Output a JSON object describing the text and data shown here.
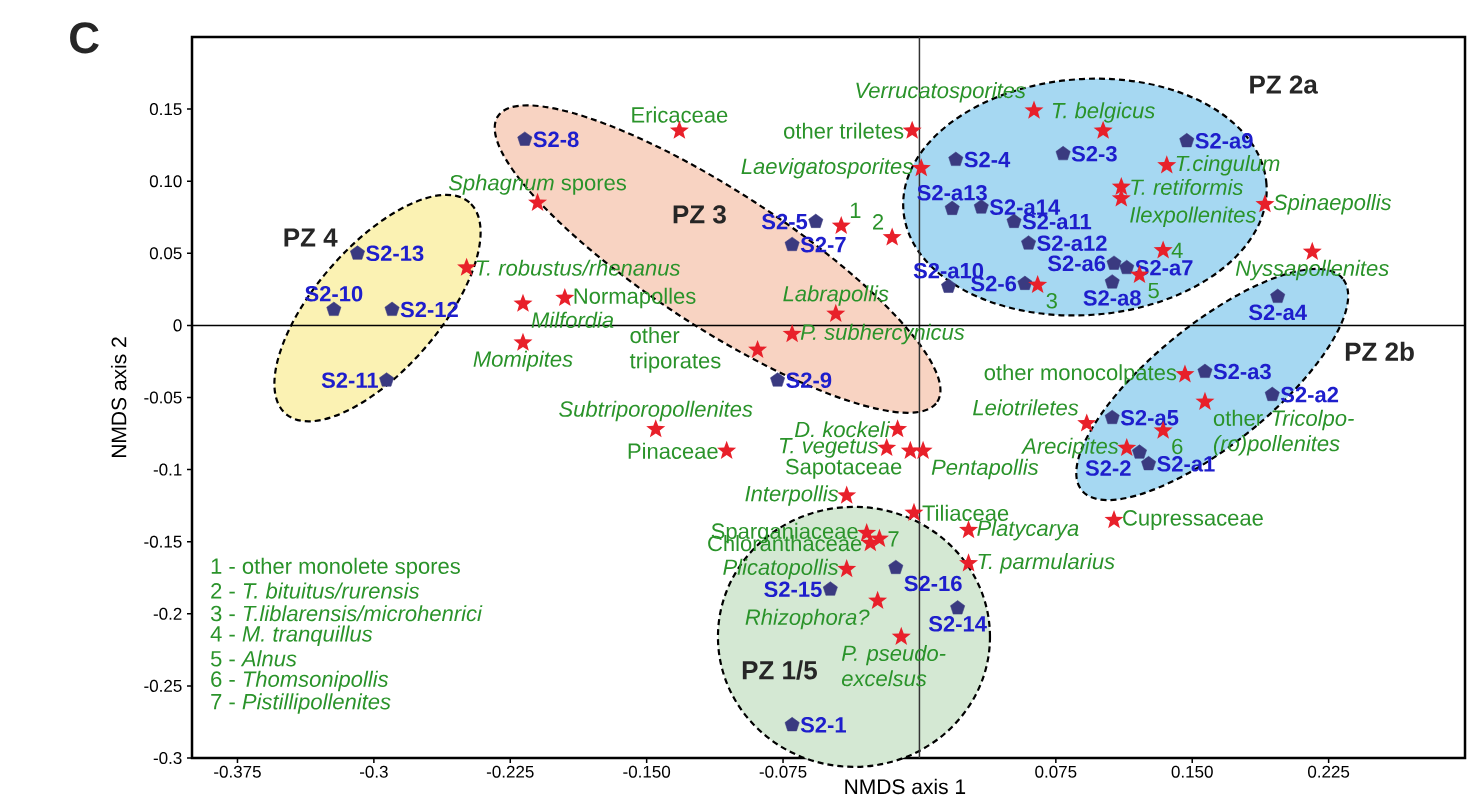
{
  "chart_data": {
    "type": "scatter",
    "title": "C",
    "xlabel": "NMDS axis 1",
    "ylabel": "NMDS axis 2",
    "xlim": [
      -0.4,
      0.3
    ],
    "ylim": [
      -0.3,
      0.2
    ],
    "xticks": [
      -0.375,
      -0.3,
      -0.225,
      {
        "value": -0.15,
        "label": "-0.150"
      },
      -0.075,
      0.075,
      {
        "value": 0.15,
        "label": "0.150"
      },
      0.225
    ],
    "yticks": [
      -0.3,
      -0.25,
      -0.2,
      -0.15,
      -0.1,
      -0.05,
      0,
      0.05,
      {
        "value": 0.1,
        "label": "0.10"
      },
      0.15
    ],
    "ref_lines": [
      {
        "axis": "x",
        "value": 0,
        "color": "#333333"
      },
      {
        "axis": "y",
        "value": 0,
        "color": "#000000"
      }
    ],
    "series": [
      {
        "color": "#3a3a80",
        "x": [
          -0.309,
          -0.322,
          -0.29,
          -0.293,
          -0.217,
          -0.057,
          -0.07,
          -0.078,
          0.02,
          0.079,
          0.147,
          0.018,
          0.034,
          0.052,
          0.06,
          0.107,
          0.114,
          0.106,
          0.016,
          0.058,
          0.197,
          0.157,
          0.194,
          0.106,
          0.121,
          0.126,
          -0.049,
          -0.013,
          0.021,
          -0.07
        ],
        "values": [
          0.05,
          0.011,
          0.011,
          -0.038,
          0.129,
          0.072,
          0.056,
          -0.038,
          0.115,
          0.119,
          0.128,
          0.081,
          0.082,
          0.072,
          0.057,
          0.043,
          0.04,
          0.03,
          0.027,
          0.029,
          0.02,
          -0.032,
          -0.048,
          -0.064,
          -0.088,
          -0.096,
          -0.183,
          -0.168,
          -0.196,
          -0.277
        ]
      },
      {
        "color": "#e8202a",
        "marker": "star",
        "x": [
          -0.249,
          -0.132,
          -0.21,
          -0.218,
          -0.195,
          -0.218,
          -0.043,
          -0.015,
          -0.004,
          0.001,
          0.063,
          0.101,
          -0.046,
          -0.07,
          -0.089,
          0.136,
          0.111,
          0.111,
          0.19,
          0.216,
          0.134,
          0.121,
          0.065,
          0.146,
          -0.145,
          -0.106,
          -0.012,
          -0.018,
          -0.005,
          0.002,
          0.092,
          0.114,
          0.134,
          0.157,
          -0.04,
          -0.003,
          -0.029,
          -0.027,
          -0.022,
          -0.04,
          0.027,
          0.027,
          0.107,
          -0.023,
          -0.01
        ],
        "values": [
          0.04,
          0.135,
          0.085,
          0.015,
          0.019,
          -0.012,
          0.069,
          0.061,
          0.135,
          0.109,
          0.149,
          0.135,
          0.008,
          -0.006,
          -0.017,
          0.111,
          0.096,
          0.088,
          0.084,
          0.051,
          0.052,
          0.035,
          0.028,
          -0.034,
          -0.072,
          -0.087,
          -0.072,
          -0.085,
          -0.087,
          -0.087,
          -0.068,
          -0.085,
          -0.073,
          -0.053,
          -0.118,
          -0.13,
          -0.144,
          -0.151,
          -0.148,
          -0.169,
          -0.142,
          -0.165,
          -0.135,
          -0.191,
          -0.216
        ]
      }
    ],
    "annotations": [
      {
        "text": "S2-13",
        "x": -0.309,
        "y": 0.05
      },
      {
        "text": "S2-10",
        "x": -0.322,
        "y": 0.011
      },
      {
        "text": "S2-12",
        "x": -0.29,
        "y": 0.011
      },
      {
        "text": "S2-11",
        "x": -0.293,
        "y": -0.038
      },
      {
        "text": "S2-8",
        "x": -0.217,
        "y": 0.129
      },
      {
        "text": "S2-5",
        "x": -0.057,
        "y": 0.072
      },
      {
        "text": "S2-7",
        "x": -0.07,
        "y": 0.056
      },
      {
        "text": "S2-9",
        "x": -0.078,
        "y": -0.038
      },
      {
        "text": "S2-4",
        "x": 0.02,
        "y": 0.115
      },
      {
        "text": "S2-3",
        "x": 0.079,
        "y": 0.119
      },
      {
        "text": "S2-a9",
        "x": 0.147,
        "y": 0.128
      },
      {
        "text": "S2-a13",
        "x": 0.018,
        "y": 0.081
      },
      {
        "text": "S2-a14",
        "x": 0.034,
        "y": 0.082
      },
      {
        "text": "S2-a11",
        "x": 0.052,
        "y": 0.072
      },
      {
        "text": "S2-a12",
        "x": 0.06,
        "y": 0.057
      },
      {
        "text": "S2-a6",
        "x": 0.107,
        "y": 0.043
      },
      {
        "text": "S2-a7",
        "x": 0.114,
        "y": 0.04
      },
      {
        "text": "S2-a8",
        "x": 0.106,
        "y": 0.03
      },
      {
        "text": "S2-a10",
        "x": 0.016,
        "y": 0.027
      },
      {
        "text": "S2-6",
        "x": 0.058,
        "y": 0.029
      },
      {
        "text": "S2-a4",
        "x": 0.197,
        "y": 0.02
      },
      {
        "text": "S2-a3",
        "x": 0.157,
        "y": -0.032
      },
      {
        "text": "S2-a2",
        "x": 0.194,
        "y": -0.048
      },
      {
        "text": "S2-a5",
        "x": 0.106,
        "y": -0.064
      },
      {
        "text": "S2-2",
        "x": 0.121,
        "y": -0.088
      },
      {
        "text": "S2-a1",
        "x": 0.126,
        "y": -0.096
      },
      {
        "text": "S2-15",
        "x": -0.049,
        "y": -0.183
      },
      {
        "text": "S2-16",
        "x": -0.013,
        "y": -0.168
      },
      {
        "text": "S2-14",
        "x": 0.021,
        "y": -0.196
      },
      {
        "text": "S2-1",
        "x": -0.07,
        "y": -0.277
      },
      {
        "text": "T. robustus/rhenanus",
        "x": -0.249,
        "y": 0.04
      },
      {
        "text": "Ericaceae",
        "x": -0.132,
        "y": 0.135
      },
      {
        "text": "*Sphagnum* spores",
        "x": -0.21,
        "y": 0.085
      },
      {
        "text": "Milfordia",
        "x": -0.218,
        "y": 0.015
      },
      {
        "text": "Normapolles",
        "x": -0.195,
        "y": 0.019
      },
      {
        "text": "Momipites",
        "x": -0.218,
        "y": -0.012
      },
      {
        "text": "1",
        "x": -0.043,
        "y": 0.069
      },
      {
        "text": "2",
        "x": -0.015,
        "y": 0.061
      },
      {
        "text": "other triletes",
        "x": -0.004,
        "y": 0.135
      },
      {
        "text": "Laevigatosporites",
        "x": 0.001,
        "y": 0.109
      },
      {
        "text": "Verrucatosporites",
        "x": 0.063,
        "y": 0.149
      },
      {
        "text": "T. belgicus",
        "x": 0.101,
        "y": 0.135
      },
      {
        "text": "Labrapollis",
        "x": -0.046,
        "y": 0.008
      },
      {
        "text": "P. subhercynicus",
        "x": -0.07,
        "y": -0.006
      },
      {
        "text": "other triporates",
        "x": -0.089,
        "y": -0.017
      },
      {
        "text": "T.cingulum",
        "x": 0.136,
        "y": 0.111
      },
      {
        "text": "T. retiformis",
        "x": 0.111,
        "y": 0.096
      },
      {
        "text": "Ilexpollenites",
        "x": 0.111,
        "y": 0.088
      },
      {
        "text": "Spinaepollis",
        "x": 0.19,
        "y": 0.084
      },
      {
        "text": "Nyssapollenites",
        "x": 0.216,
        "y": 0.051
      },
      {
        "text": "4",
        "x": 0.134,
        "y": 0.052
      },
      {
        "text": "5",
        "x": 0.121,
        "y": 0.035
      },
      {
        "text": "3",
        "x": 0.065,
        "y": 0.028
      },
      {
        "text": "other monocolpates",
        "x": 0.146,
        "y": -0.034
      },
      {
        "text": "Subtriporopollenites",
        "x": -0.145,
        "y": -0.072
      },
      {
        "text": "Pinaceae",
        "x": -0.106,
        "y": -0.087
      },
      {
        "text": "D. kockeli",
        "x": -0.012,
        "y": -0.072
      },
      {
        "text": "T. vegetus",
        "x": -0.018,
        "y": -0.085
      },
      {
        "text": "Sapotaceae",
        "x": -0.005,
        "y": -0.087
      },
      {
        "text": "Pentapollis",
        "x": 0.002,
        "y": -0.087
      },
      {
        "text": "Leiotriletes",
        "x": 0.092,
        "y": -0.068
      },
      {
        "text": "Arecipites",
        "x": 0.114,
        "y": -0.085
      },
      {
        "text": "6",
        "x": 0.134,
        "y": -0.073
      },
      {
        "text": "other *Tricolpo-(ro)pollenites*",
        "x": 0.157,
        "y": -0.053
      },
      {
        "text": "Interpollis",
        "x": -0.04,
        "y": -0.118
      },
      {
        "text": "Tiliaceae",
        "x": -0.003,
        "y": -0.13
      },
      {
        "text": "Sparganiaceae",
        "x": -0.029,
        "y": -0.144
      },
      {
        "text": "Chloranthaceae",
        "x": -0.027,
        "y": -0.151
      },
      {
        "text": "7",
        "x": -0.022,
        "y": -0.148
      },
      {
        "text": "Plicatopollis",
        "x": -0.04,
        "y": -0.169
      },
      {
        "text": "Platycarya",
        "x": 0.027,
        "y": -0.142
      },
      {
        "text": "T. parmularius",
        "x": 0.027,
        "y": -0.165
      },
      {
        "text": "Cupressaceae",
        "x": 0.107,
        "y": -0.135
      },
      {
        "text": "Rhizophora?",
        "x": -0.023,
        "y": -0.191
      },
      {
        "text": "P. pseudo-excelsus",
        "x": -0.01,
        "y": -0.216
      },
      "PZ 4",
      "PZ 3",
      "PZ 2a",
      "PZ 2b",
      "PZ 1/5",
      "1 - other monolete spores",
      "2 - *T. bituitus/rurensis*",
      "3 - *T.liblarensis/microhenrici*",
      "4 - *M. tranquillus*",
      "5 - *Alnus*",
      "6 - *Thomsonipollis*",
      "7 - *Pistillipollenites*"
    ]
  }
}
